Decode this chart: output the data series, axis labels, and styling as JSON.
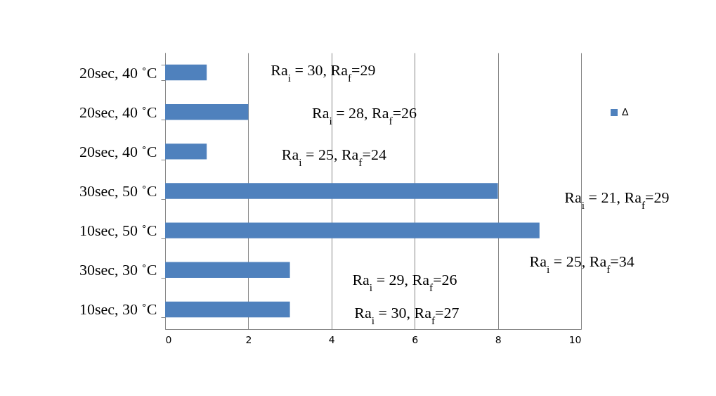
{
  "chart_data": {
    "type": "bar",
    "orientation": "horizontal",
    "categories": [
      "20sec, 40 ˚C",
      "20sec, 40 ˚C",
      "20sec, 40 ˚C",
      "30sec, 50 ˚C",
      "10sec, 50 ˚C",
      "30sec, 30 ˚C",
      "10sec, 30 ˚C"
    ],
    "series": [
      {
        "name": "Δ",
        "color": "#4f81bd",
        "values": [
          1,
          2,
          1,
          8,
          9,
          3,
          3
        ]
      }
    ],
    "xlim": [
      0,
      10
    ],
    "xticks": [
      0,
      2,
      4,
      6,
      8,
      10
    ],
    "grid": "x",
    "legend": "right",
    "annotations": [
      "Ra$_{i}$ = 30, Ra$_{f}$=29",
      "Ra$_{i}$ = 28, Ra$_{f}$=26",
      "Ra$_{i}$ = 25, Ra$_{f}$=24",
      "Ra$_{i}$ = 21, Ra$_{f}$=29",
      "Ra$_{i}$ = 25, Ra$_{f}$=34",
      "Ra$_{i}$ = 29, Ra$_{f}$=26",
      "Ra$_{i}$ = 30, Ra$_{f}$=27"
    ]
  }
}
